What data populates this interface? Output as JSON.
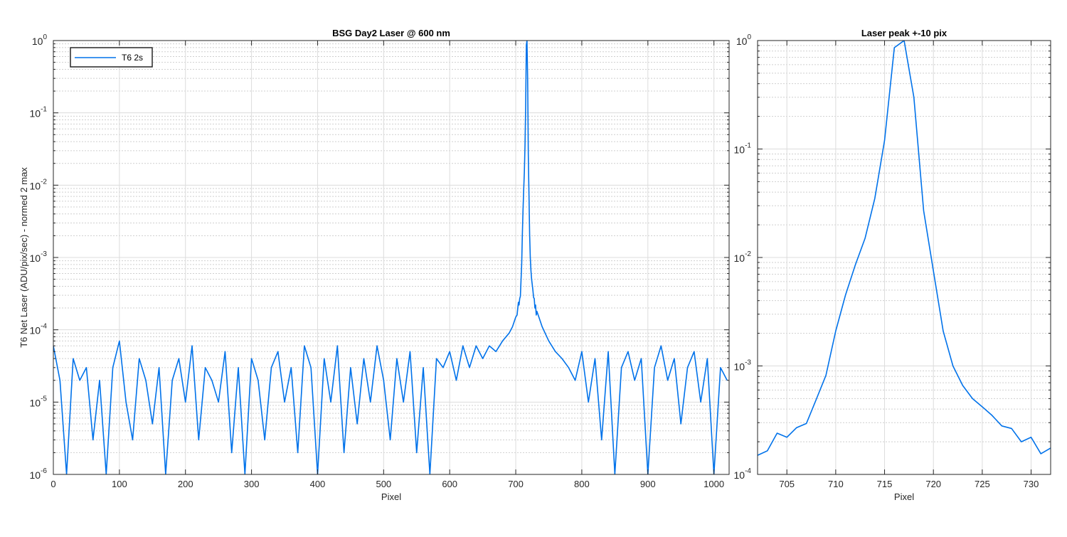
{
  "chart_data": [
    {
      "type": "line",
      "title": "BSG  Day2 Laser @ 600 nm",
      "xlabel": "Pixel",
      "ylabel": "T6 Net Laser (ADU/pix/sec) - normed 2 max",
      "xlim": [
        0,
        1023
      ],
      "ylim": [
        1e-06,
        1
      ],
      "yscale": "log",
      "grid": true,
      "minor_grid": true,
      "legend_position": "top-left",
      "x_ticks": [
        0,
        100,
        200,
        300,
        400,
        500,
        600,
        700,
        800,
        900,
        1000
      ],
      "x_tick_labels": [
        "0",
        "100",
        "200",
        "300",
        "400",
        "500",
        "600",
        "700",
        "800",
        "900",
        "1000"
      ],
      "y_ticks": [
        {
          "base": "10",
          "exp": "-6"
        },
        {
          "base": "10",
          "exp": "-5"
        },
        {
          "base": "10",
          "exp": "-4"
        },
        {
          "base": "10",
          "exp": "-3"
        },
        {
          "base": "10",
          "exp": "-2"
        },
        {
          "base": "10",
          "exp": "-1"
        },
        {
          "base": "10",
          "exp": "0"
        }
      ],
      "series": [
        {
          "name": "T6 2s",
          "color": "#0072ea",
          "x": [
            0,
            10,
            20,
            30,
            40,
            50,
            60,
            70,
            80,
            90,
            100,
            110,
            120,
            130,
            140,
            150,
            160,
            170,
            180,
            190,
            200,
            210,
            220,
            230,
            240,
            250,
            260,
            270,
            280,
            290,
            300,
            310,
            320,
            330,
            340,
            350,
            360,
            370,
            380,
            390,
            400,
            410,
            420,
            430,
            440,
            450,
            460,
            470,
            480,
            490,
            500,
            510,
            520,
            530,
            540,
            550,
            560,
            570,
            580,
            590,
            600,
            610,
            620,
            630,
            640,
            650,
            660,
            670,
            680,
            690,
            695,
            700,
            702,
            704,
            705,
            706,
            707,
            708,
            709,
            710,
            711,
            712,
            713,
            714,
            715,
            716,
            717,
            718,
            719,
            720,
            721,
            722,
            723,
            724,
            725,
            726,
            727,
            728,
            729,
            730,
            731,
            732,
            735,
            740,
            750,
            760,
            770,
            780,
            790,
            800,
            810,
            820,
            830,
            840,
            850,
            860,
            870,
            880,
            890,
            900,
            910,
            920,
            930,
            940,
            950,
            960,
            970,
            980,
            990,
            1000,
            1010,
            1020
          ],
          "y": [
            6e-05,
            2e-05,
            1e-06,
            4e-05,
            2e-05,
            3e-05,
            3e-06,
            2e-05,
            1e-06,
            3e-05,
            7e-05,
            1e-05,
            3e-06,
            4e-05,
            2e-05,
            5e-06,
            3e-05,
            1e-06,
            2e-05,
            4e-05,
            1e-05,
            6e-05,
            3e-06,
            3e-05,
            2e-05,
            1e-05,
            5e-05,
            2e-06,
            3e-05,
            1e-06,
            4e-05,
            2e-05,
            3e-06,
            3e-05,
            5e-05,
            1e-05,
            3e-05,
            2e-06,
            6e-05,
            3e-05,
            1e-06,
            4e-05,
            1e-05,
            6e-05,
            2e-06,
            3e-05,
            5e-06,
            4e-05,
            1e-05,
            6e-05,
            2e-05,
            3e-06,
            4e-05,
            1e-05,
            5e-05,
            2e-06,
            3e-05,
            1e-06,
            4e-05,
            3e-05,
            5e-05,
            2e-05,
            6e-05,
            3e-05,
            6e-05,
            4e-05,
            6e-05,
            5e-05,
            7e-05,
            9e-05,
            0.00011,
            0.00015,
            0.00016,
            0.00024,
            0.00022,
            0.00027,
            0.00029,
            0.00049,
            0.00082,
            0.0021,
            0.0045,
            0.0085,
            0.015,
            0.035,
            0.12,
            0.86,
            1.0,
            0.3,
            0.027,
            0.0075,
            0.0021,
            0.001,
            0.00066,
            0.0005,
            0.00042,
            0.00035,
            0.00028,
            0.00027,
            0.0002,
            0.00022,
            0.00016,
            0.00018,
            0.00015,
            0.00011,
            7e-05,
            5e-05,
            4e-05,
            3e-05,
            2e-05,
            5e-05,
            1e-05,
            4e-05,
            3e-06,
            5e-05,
            1e-06,
            3e-05,
            5e-05,
            2e-05,
            4e-05,
            1e-06,
            3e-05,
            6e-05,
            2e-05,
            4e-05,
            5e-06,
            3e-05,
            5e-05,
            1e-05,
            4e-05,
            1e-06,
            3e-05,
            2e-05
          ]
        }
      ]
    },
    {
      "type": "line",
      "title": "Laser peak +-10 pix",
      "xlabel": "Pixel",
      "ylabel": "",
      "xlim": [
        702,
        732
      ],
      "ylim": [
        0.0001,
        1
      ],
      "yscale": "log",
      "grid": true,
      "minor_grid": true,
      "x_ticks": [
        705,
        710,
        715,
        720,
        725,
        730
      ],
      "x_tick_labels": [
        "705",
        "710",
        "715",
        "720",
        "725",
        "730"
      ],
      "y_ticks": [
        {
          "base": "10",
          "exp": "-4"
        },
        {
          "base": "10",
          "exp": "-3"
        },
        {
          "base": "10",
          "exp": "-2"
        },
        {
          "base": "10",
          "exp": "-1"
        },
        {
          "base": "10",
          "exp": "0"
        }
      ],
      "series": [
        {
          "color": "#0072ea",
          "x": [
            702,
            703,
            704,
            705,
            706,
            707,
            708,
            709,
            710,
            711,
            712,
            713,
            714,
            715,
            716,
            717,
            718,
            719,
            720,
            721,
            722,
            723,
            724,
            725,
            726,
            727,
            728,
            729,
            730,
            731,
            732
          ],
          "y": [
            0.00015,
            0.000165,
            0.00024,
            0.00022,
            0.00027,
            0.000295,
            0.00049,
            0.00082,
            0.0021,
            0.0045,
            0.0085,
            0.015,
            0.035,
            0.12,
            0.86,
            1.0,
            0.3,
            0.027,
            0.0075,
            0.0021,
            0.001,
            0.00066,
            0.0005,
            0.00042,
            0.00035,
            0.00028,
            0.000265,
            0.0002,
            0.00022,
            0.000155,
            0.000175
          ]
        }
      ]
    }
  ]
}
